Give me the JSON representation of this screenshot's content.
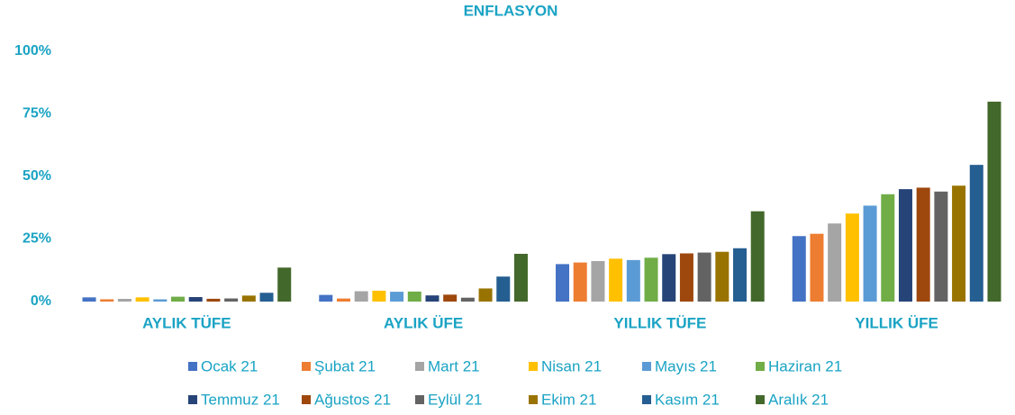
{
  "chart_data": {
    "type": "bar",
    "title": "ENFLASYON",
    "categories": [
      "AYLIK TÜFE",
      "AYLIK ÜFE",
      "YILLIK TÜFE",
      "YILLIK ÜFE"
    ],
    "series": [
      {
        "name": "Ocak 21",
        "color": "#4472c4",
        "values": [
          1.68,
          2.66,
          14.97,
          26.16
        ]
      },
      {
        "name": "Şubat 21",
        "color": "#ed7d31",
        "values": [
          0.91,
          1.22,
          15.61,
          27.09
        ]
      },
      {
        "name": "Mart 21",
        "color": "#a5a5a5",
        "values": [
          1.08,
          4.13,
          16.19,
          31.2
        ]
      },
      {
        "name": "Nisan 21",
        "color": "#ffc000",
        "values": [
          1.68,
          4.34,
          17.14,
          35.17
        ]
      },
      {
        "name": "Mayıs 21",
        "color": "#5b9bd5",
        "values": [
          0.89,
          3.92,
          16.59,
          38.33
        ]
      },
      {
        "name": "Haziran 21",
        "color": "#70ad47",
        "values": [
          1.94,
          4.01,
          17.53,
          42.89
        ]
      },
      {
        "name": "Temmuz 21",
        "color": "#264478",
        "values": [
          1.8,
          2.46,
          18.95,
          44.92
        ]
      },
      {
        "name": "Ağustos 21",
        "color": "#9e480e",
        "values": [
          1.12,
          2.77,
          19.25,
          45.52
        ]
      },
      {
        "name": "Eylül 21",
        "color": "#636363",
        "values": [
          1.25,
          1.55,
          19.58,
          43.96
        ]
      },
      {
        "name": "Ekim 21",
        "color": "#997300",
        "values": [
          2.39,
          5.24,
          19.89,
          46.31
        ]
      },
      {
        "name": "Kasım 21",
        "color": "#255e91",
        "values": [
          3.51,
          9.99,
          21.31,
          54.62
        ]
      },
      {
        "name": "Aralık 21",
        "color": "#43682b",
        "values": [
          13.58,
          19.08,
          36.08,
          79.89
        ]
      }
    ],
    "ylim": [
      0,
      100
    ],
    "yticks": [
      {
        "value": 0,
        "label": "0%"
      },
      {
        "value": 25,
        "label": "25%"
      },
      {
        "value": 50,
        "label": "50%"
      },
      {
        "value": 75,
        "label": "75%"
      },
      {
        "value": 100,
        "label": "100%"
      }
    ],
    "grid": false
  }
}
